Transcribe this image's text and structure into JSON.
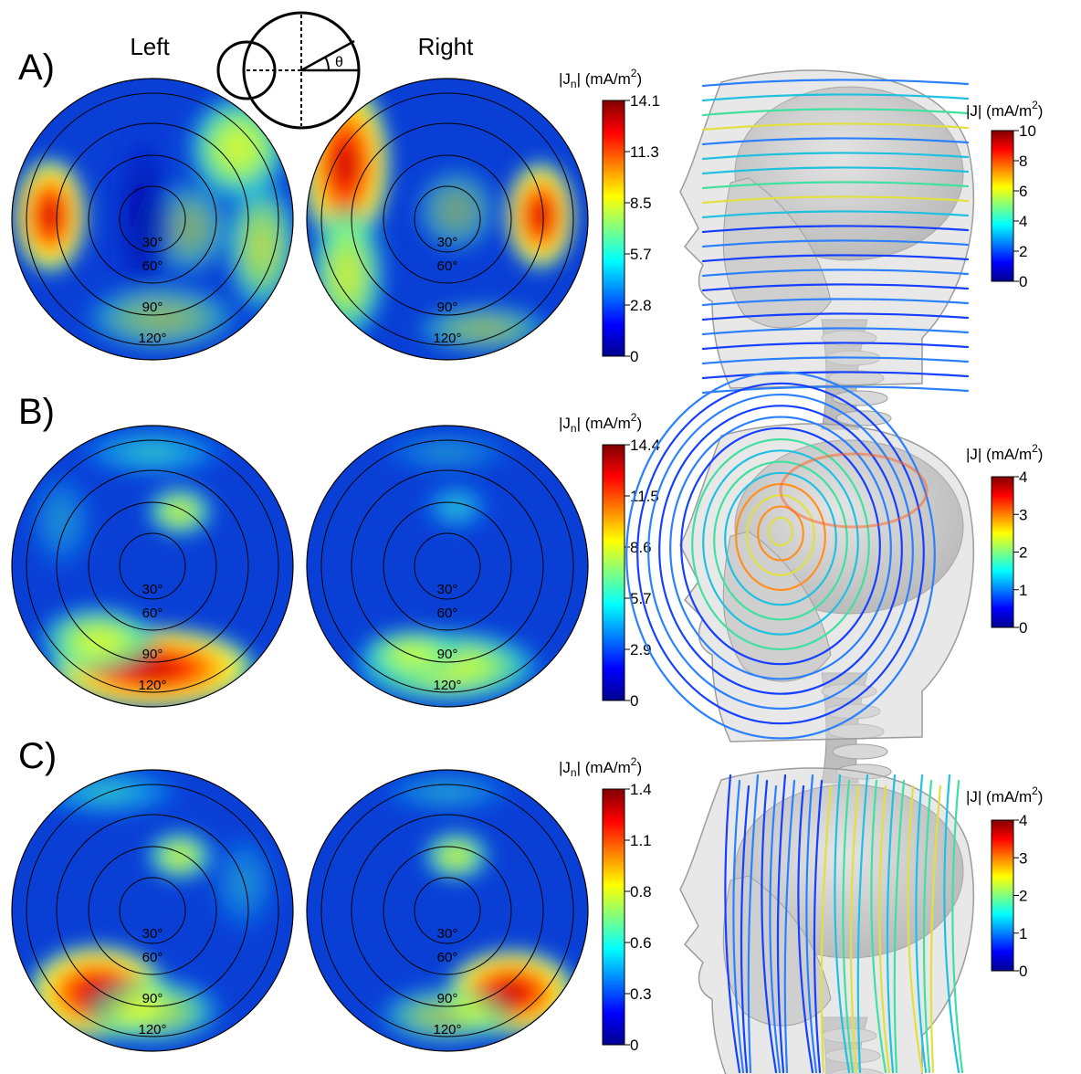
{
  "figure": {
    "header": {
      "left": "Left",
      "right": "Right",
      "theta": "θ"
    },
    "colors": {
      "jet": [
        "#00008f",
        "#0000ff",
        "#0080ff",
        "#00ffff",
        "#80ff80",
        "#ffff00",
        "#ff8000",
        "#ff0000",
        "#800000"
      ],
      "disk_base": "#0a3fd6",
      "head": "#c9c9c9"
    },
    "ring_labels": [
      "30°",
      "60°",
      "90°",
      "120°"
    ],
    "panels": [
      {
        "label": "A)",
        "jn_label": {
          "prefix": "|J",
          "sub": "n",
          "mid": "| (mA/m",
          "sup": "2",
          "end": ")"
        },
        "jn_ticks": [
          "14.1",
          "11.3",
          "8.5",
          "5.7",
          "2.8",
          "0"
        ],
        "j_label": {
          "prefix": "|J| (mA/m",
          "sup": "2",
          "end": ")"
        },
        "j_ticks": [
          "10",
          "8",
          "6",
          "4",
          "2",
          "0"
        ],
        "streamline_style": "horizontal"
      },
      {
        "label": "B)",
        "jn_label": {
          "prefix": "|J",
          "sub": "n",
          "mid": "| (mA/m",
          "sup": "2",
          "end": ")"
        },
        "jn_ticks": [
          "14.4",
          "11.5",
          "8.6",
          "5.7",
          "2.9",
          "0"
        ],
        "j_label": {
          "prefix": "|J| (mA/m",
          "sup": "2",
          "end": ")"
        },
        "j_ticks": [
          "4",
          "3",
          "2",
          "1",
          "0"
        ],
        "streamline_style": "loops"
      },
      {
        "label": "C)",
        "jn_label": {
          "prefix": "|J",
          "sub": "n",
          "mid": "| (mA/m",
          "sup": "2",
          "end": ")"
        },
        "jn_ticks": [
          "1.4",
          "1.1",
          "0.8",
          "0.6",
          "0.3",
          "0"
        ],
        "j_label": {
          "prefix": "|J| (mA/m",
          "sup": "2",
          "end": ")"
        },
        "j_ticks": [
          "4",
          "3",
          "2",
          "1",
          "0"
        ],
        "streamline_style": "vertical"
      }
    ]
  }
}
